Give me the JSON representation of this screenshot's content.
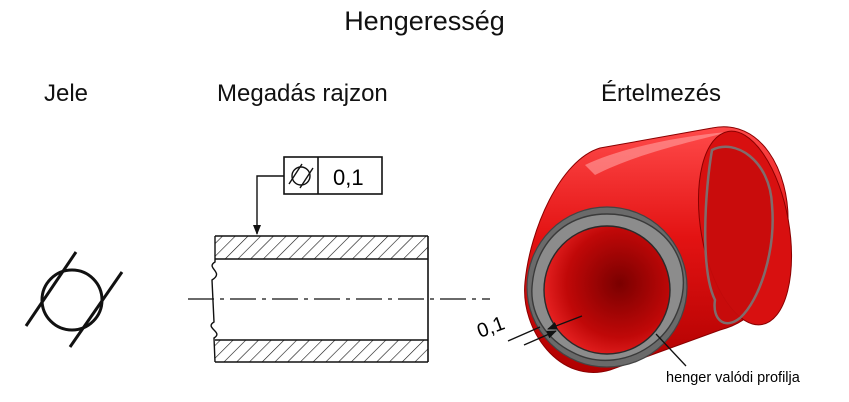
{
  "title": "Hengeresség",
  "columns": {
    "symbol": "Jele",
    "drawing": "Megadás rajzon",
    "interpretation": "Értelmezés"
  },
  "feature_frame": {
    "symbol_icon": "cylindricity-icon",
    "tolerance_value": "0,1"
  },
  "interpretation": {
    "tolerance_zone_label": "0,1",
    "profile_label": "henger valódi profilja"
  },
  "colors": {
    "cylinder_red": "#e01010",
    "cylinder_dark": "#a00000",
    "profile_gray": "#6a6a6a",
    "line": "#111111"
  }
}
